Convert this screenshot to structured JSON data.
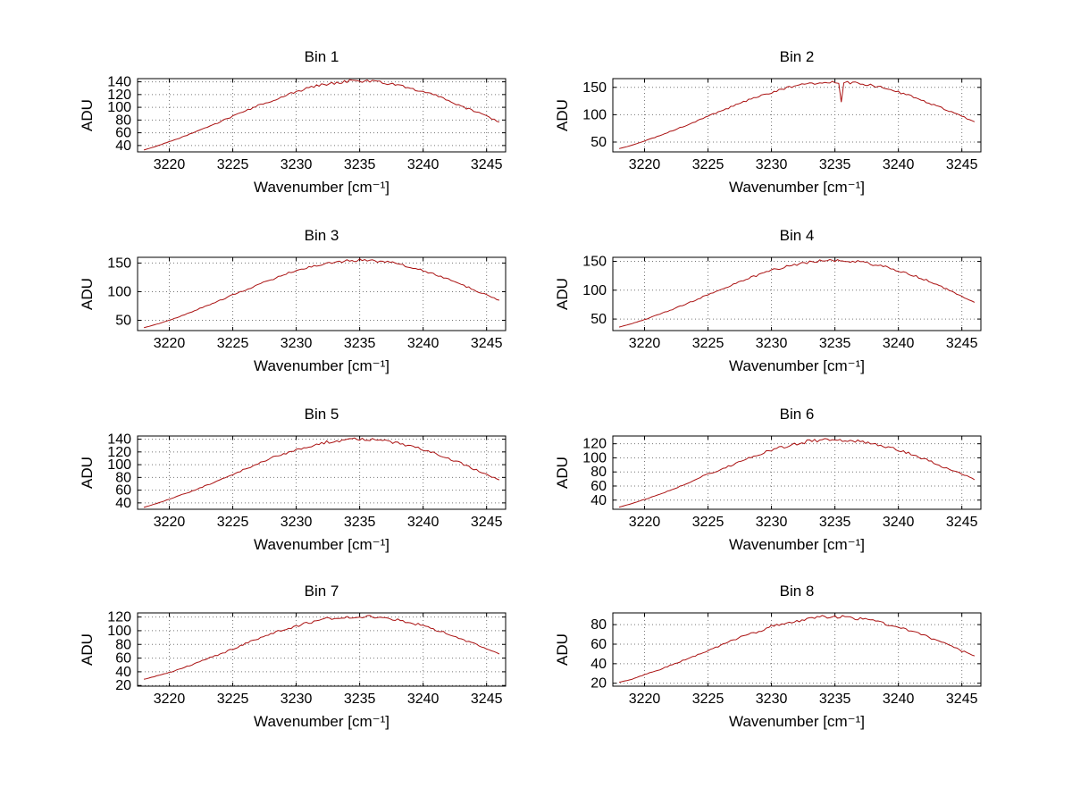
{
  "figure": {
    "background": "#ffffff",
    "grid_color": "#777777",
    "axis_color": "#000000"
  },
  "chart_data": [
    {
      "type": "line",
      "title": "Bin 1",
      "xlabel": "Wavenumber [cm⁻¹]",
      "ylabel": "ADU",
      "xlim": [
        3217.5,
        3246.5
      ],
      "ylim": [
        30,
        145
      ],
      "xticks": [
        3220,
        3225,
        3230,
        3235,
        3240,
        3245
      ],
      "yticks": [
        40,
        60,
        80,
        100,
        120,
        140
      ],
      "color": "#aa1111",
      "noise": 2.5,
      "grid": true,
      "x": [
        3218,
        3219,
        3220,
        3221,
        3222,
        3223,
        3224,
        3225,
        3226,
        3227,
        3228,
        3229,
        3230,
        3231,
        3232,
        3233,
        3234,
        3235,
        3236,
        3237,
        3238,
        3239,
        3240,
        3241,
        3242,
        3243,
        3244,
        3245,
        3246
      ],
      "y": [
        33,
        39,
        46,
        53,
        61,
        69,
        77,
        86,
        94,
        103,
        110,
        118,
        125,
        130,
        136,
        138,
        141,
        140,
        141,
        138,
        134,
        131,
        124,
        118,
        110,
        102,
        94,
        86,
        77
      ]
    },
    {
      "type": "line",
      "title": "Bin 2",
      "xlabel": "Wavenumber [cm⁻¹]",
      "ylabel": "ADU",
      "xlim": [
        3217.5,
        3246.5
      ],
      "ylim": [
        32,
        166
      ],
      "xticks": [
        3220,
        3225,
        3230,
        3235,
        3240,
        3245
      ],
      "yticks": [
        50,
        100,
        150
      ],
      "color": "#aa1111",
      "noise": 2.5,
      "grid": true,
      "x": [
        3218,
        3219,
        3220,
        3221,
        3222,
        3223,
        3224,
        3225,
        3226,
        3227,
        3228,
        3229,
        3230,
        3231,
        3232,
        3233,
        3234,
        3235,
        3235.3,
        3235.5,
        3235.7,
        3236,
        3237,
        3238,
        3239,
        3240,
        3241,
        3242,
        3243,
        3244,
        3245,
        3246
      ],
      "y": [
        38,
        44,
        52,
        60,
        69,
        78,
        87,
        97,
        107,
        116,
        125,
        134,
        141,
        148,
        153,
        157,
        159,
        160,
        157,
        124,
        156,
        159,
        157,
        153,
        148,
        141,
        134,
        125,
        116,
        107,
        97,
        87
      ]
    },
    {
      "type": "line",
      "title": "Bin 3",
      "xlabel": "Wavenumber [cm⁻¹]",
      "ylabel": "ADU",
      "xlim": [
        3217.5,
        3246.5
      ],
      "ylim": [
        32,
        160
      ],
      "xticks": [
        3220,
        3225,
        3230,
        3235,
        3240,
        3245
      ],
      "yticks": [
        50,
        100,
        150
      ],
      "color": "#aa1111",
      "noise": 2.5,
      "grid": true,
      "x": [
        3218,
        3219,
        3220,
        3221,
        3222,
        3223,
        3224,
        3225,
        3226,
        3227,
        3228,
        3229,
        3230,
        3231,
        3232,
        3233,
        3234,
        3235,
        3236,
        3237,
        3238,
        3239,
        3240,
        3241,
        3242,
        3243,
        3244,
        3245,
        3246
      ],
      "y": [
        37,
        43,
        50,
        58,
        67,
        76,
        85,
        94,
        103,
        113,
        121,
        129,
        137,
        143,
        148,
        152,
        154,
        155,
        154,
        152,
        149,
        143,
        137,
        129,
        121,
        113,
        103,
        94,
        85
      ]
    },
    {
      "type": "line",
      "title": "Bin 4",
      "xlabel": "Wavenumber [cm⁻¹]",
      "ylabel": "ADU",
      "xlim": [
        3217.5,
        3246.5
      ],
      "ylim": [
        30,
        157
      ],
      "xticks": [
        3220,
        3225,
        3230,
        3235,
        3240,
        3245
      ],
      "yticks": [
        50,
        100,
        150
      ],
      "color": "#aa1111",
      "noise": 2.5,
      "grid": true,
      "x": [
        3218,
        3219,
        3220,
        3221,
        3222,
        3223,
        3224,
        3225,
        3226,
        3227,
        3228,
        3229,
        3230,
        3231,
        3232,
        3233,
        3234,
        3235,
        3236,
        3237,
        3238,
        3239,
        3240,
        3241,
        3242,
        3243,
        3244,
        3245,
        3246
      ],
      "y": [
        36,
        42,
        49,
        57,
        65,
        74,
        83,
        92,
        101,
        110,
        119,
        127,
        134,
        140,
        145,
        149,
        151,
        152,
        151,
        149,
        145,
        140,
        134,
        127,
        119,
        110,
        100,
        90,
        79
      ]
    },
    {
      "type": "line",
      "title": "Bin 5",
      "xlabel": "Wavenumber [cm⁻¹]",
      "ylabel": "ADU",
      "xlim": [
        3217.5,
        3246.5
      ],
      "ylim": [
        30,
        145
      ],
      "xticks": [
        3220,
        3225,
        3230,
        3235,
        3240,
        3245
      ],
      "yticks": [
        40,
        60,
        80,
        100,
        120,
        140
      ],
      "color": "#aa1111",
      "noise": 2.5,
      "grid": true,
      "x": [
        3218,
        3219,
        3220,
        3221,
        3222,
        3223,
        3224,
        3225,
        3226,
        3227,
        3228,
        3229,
        3230,
        3231,
        3232,
        3233,
        3234,
        3235,
        3236,
        3237,
        3238,
        3239,
        3240,
        3241,
        3242,
        3243,
        3244,
        3245,
        3246
      ],
      "y": [
        33,
        39,
        46,
        53,
        60,
        68,
        76,
        85,
        93,
        102,
        110,
        117,
        123,
        129,
        134,
        137,
        139,
        140,
        139,
        137,
        134,
        129,
        124,
        117,
        110,
        102,
        93,
        85,
        76
      ]
    },
    {
      "type": "line",
      "title": "Bin 6",
      "xlabel": "Wavenumber [cm⁻¹]",
      "ylabel": "ADU",
      "xlim": [
        3217.5,
        3246.5
      ],
      "ylim": [
        27,
        131
      ],
      "xticks": [
        3220,
        3225,
        3230,
        3235,
        3240,
        3245
      ],
      "yticks": [
        40,
        60,
        80,
        100,
        120
      ],
      "color": "#aa1111",
      "noise": 2.5,
      "grid": true,
      "x": [
        3218,
        3219,
        3220,
        3221,
        3222,
        3223,
        3224,
        3225,
        3226,
        3227,
        3228,
        3229,
        3230,
        3231,
        3232,
        3233,
        3234,
        3235,
        3236,
        3237,
        3238,
        3239,
        3240,
        3241,
        3242,
        3243,
        3244,
        3245,
        3246
      ],
      "y": [
        30,
        35,
        41,
        47,
        54,
        61,
        69,
        77,
        84,
        91,
        99,
        105,
        111,
        116,
        120,
        124,
        125,
        126,
        125,
        124,
        120,
        116,
        111,
        105,
        99,
        91,
        84,
        77,
        69
      ]
    },
    {
      "type": "line",
      "title": "Bin 7",
      "xlabel": "Wavenumber [cm⁻¹]",
      "ylabel": "ADU",
      "xlim": [
        3217.5,
        3246.5
      ],
      "ylim": [
        19,
        126
      ],
      "xticks": [
        3220,
        3225,
        3230,
        3235,
        3240,
        3245
      ],
      "yticks": [
        20,
        40,
        60,
        80,
        100,
        120
      ],
      "color": "#aa1111",
      "noise": 2.5,
      "grid": true,
      "x": [
        3218,
        3219,
        3220,
        3221,
        3222,
        3223,
        3224,
        3225,
        3226,
        3227,
        3228,
        3229,
        3230,
        3231,
        3232,
        3233,
        3234,
        3235,
        3236,
        3237,
        3238,
        3239,
        3240,
        3241,
        3242,
        3243,
        3244,
        3245,
        3246
      ],
      "y": [
        29,
        34,
        39,
        45,
        52,
        59,
        66,
        73,
        81,
        88,
        95,
        101,
        107,
        112,
        116,
        119,
        120,
        121,
        120,
        119,
        116,
        112,
        107,
        101,
        95,
        88,
        81,
        73,
        66
      ]
    },
    {
      "type": "line",
      "title": "Bin 8",
      "xlabel": "Wavenumber [cm⁻¹]",
      "ylabel": "ADU",
      "xlim": [
        3217.5,
        3246.5
      ],
      "ylim": [
        17,
        92
      ],
      "xticks": [
        3220,
        3225,
        3230,
        3235,
        3240,
        3245
      ],
      "yticks": [
        20,
        40,
        60,
        80
      ],
      "color": "#aa1111",
      "noise": 1.8,
      "grid": true,
      "x": [
        3218,
        3219,
        3220,
        3221,
        3222,
        3223,
        3224,
        3225,
        3226,
        3227,
        3228,
        3229,
        3230,
        3231,
        3232,
        3233,
        3234,
        3235,
        3236,
        3237,
        3238,
        3239,
        3240,
        3241,
        3242,
        3243,
        3244,
        3245,
        3246
      ],
      "y": [
        21,
        24,
        29,
        33,
        38,
        43,
        48,
        53,
        59,
        64,
        69,
        73,
        78,
        81,
        84,
        86,
        88,
        88,
        88,
        86,
        84,
        81,
        78,
        73,
        69,
        64,
        59,
        53,
        48
      ]
    }
  ]
}
